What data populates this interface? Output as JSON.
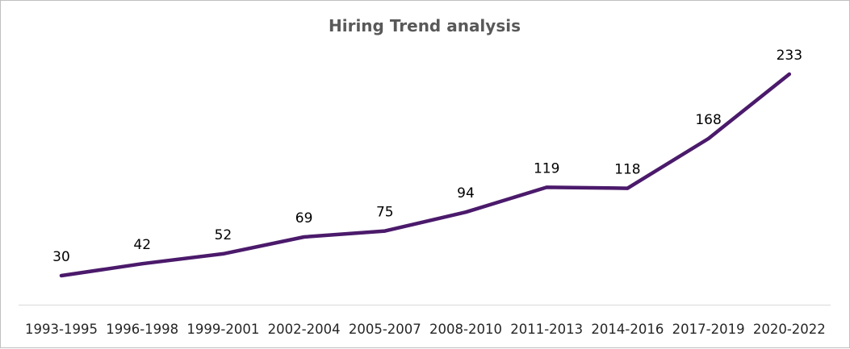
{
  "chart_data": {
    "type": "line",
    "title": "Hiring Trend analysis",
    "xlabel": "",
    "ylabel": "",
    "categories": [
      "1993-1995",
      "1996-1998",
      "1999-2001",
      "2002-2004",
      "2005-2007",
      "2008-2010",
      "2011-2013",
      "2014-2016",
      "2017-2019",
      "2020-2022"
    ],
    "series": [
      {
        "values": [
          30,
          42,
          52,
          69,
          75,
          94,
          119,
          118,
          168,
          233
        ]
      }
    ],
    "line_color": "#4b1a6b",
    "grid": false,
    "legend": "none",
    "data_labels": true
  }
}
